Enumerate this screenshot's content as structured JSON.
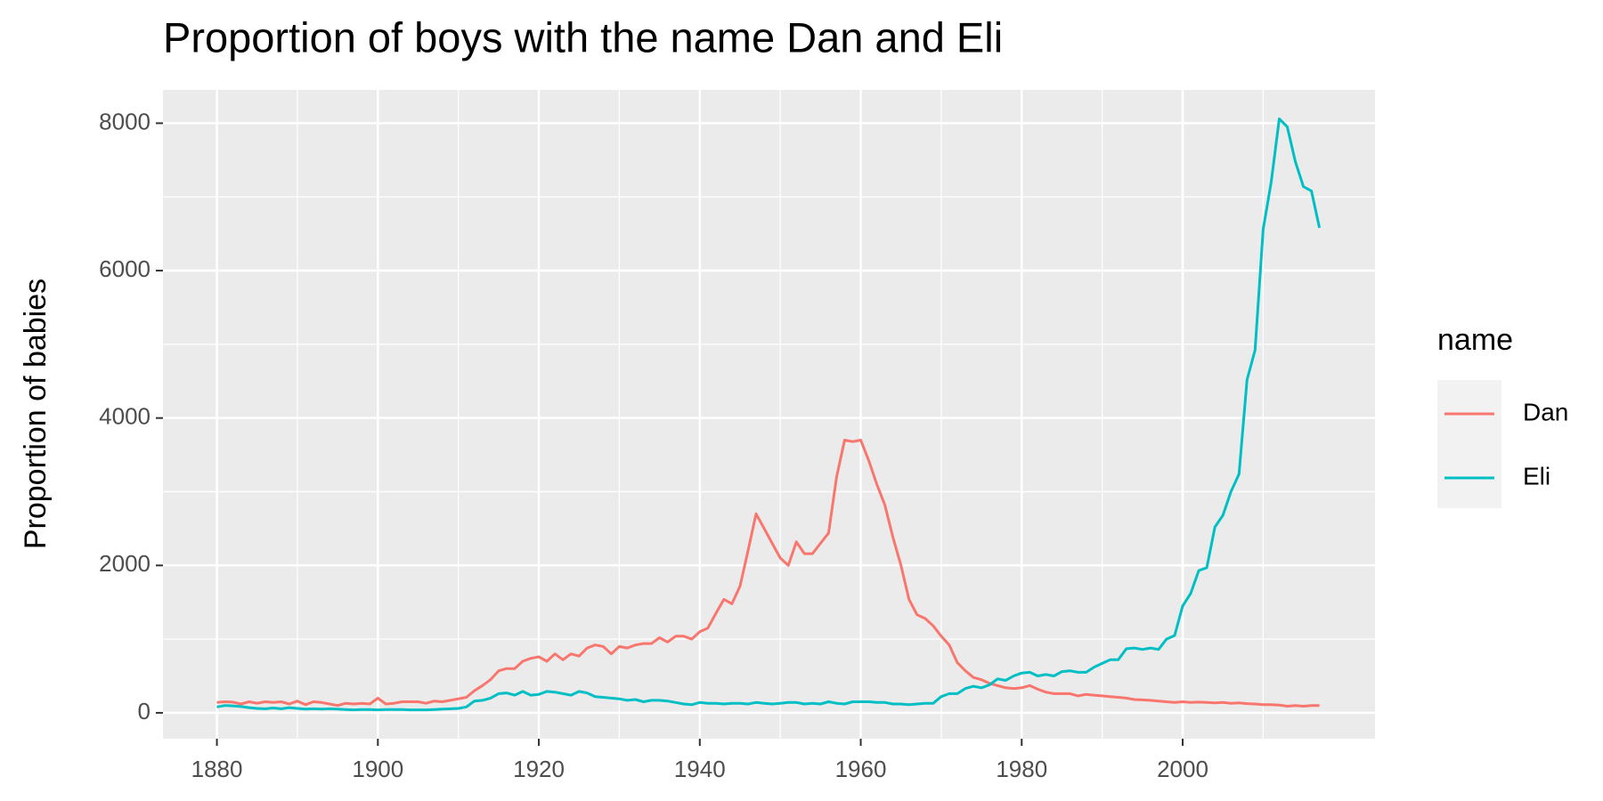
{
  "chart_data": {
    "type": "line",
    "title": "Proportion of boys with the name Dan and Eli",
    "y_label": "Proportion of babies",
    "legend_title": "name",
    "x": [
      1880,
      1881,
      1882,
      1883,
      1884,
      1885,
      1886,
      1887,
      1888,
      1889,
      1890,
      1891,
      1892,
      1893,
      1894,
      1895,
      1896,
      1897,
      1898,
      1899,
      1900,
      1901,
      1902,
      1903,
      1904,
      1905,
      1906,
      1907,
      1908,
      1909,
      1910,
      1911,
      1912,
      1913,
      1914,
      1915,
      1916,
      1917,
      1918,
      1919,
      1920,
      1921,
      1922,
      1923,
      1924,
      1925,
      1926,
      1927,
      1928,
      1929,
      1930,
      1931,
      1932,
      1933,
      1934,
      1935,
      1936,
      1937,
      1938,
      1939,
      1940,
      1941,
      1942,
      1943,
      1944,
      1945,
      1946,
      1947,
      1948,
      1949,
      1950,
      1951,
      1952,
      1953,
      1954,
      1955,
      1956,
      1957,
      1958,
      1959,
      1960,
      1961,
      1962,
      1963,
      1964,
      1965,
      1966,
      1967,
      1968,
      1969,
      1970,
      1971,
      1972,
      1973,
      1974,
      1975,
      1976,
      1977,
      1978,
      1979,
      1980,
      1981,
      1982,
      1983,
      1984,
      1985,
      1986,
      1987,
      1988,
      1989,
      1990,
      1991,
      1992,
      1993,
      1994,
      1995,
      1996,
      1997,
      1998,
      1999,
      2000,
      2001,
      2002,
      2003,
      2004,
      2005,
      2006,
      2007,
      2008,
      2009,
      2010,
      2011,
      2012,
      2013,
      2014,
      2015,
      2016,
      2017
    ],
    "series": [
      {
        "name": "Dan",
        "color": "#f8766d",
        "values": [
          140,
          150,
          145,
          120,
          150,
          130,
          150,
          140,
          150,
          120,
          160,
          110,
          150,
          140,
          120,
          100,
          130,
          120,
          130,
          120,
          200,
          120,
          130,
          150,
          150,
          150,
          130,
          160,
          150,
          170,
          190,
          210,
          300,
          370,
          450,
          570,
          600,
          600,
          700,
          740,
          760,
          700,
          800,
          720,
          800,
          770,
          880,
          920,
          900,
          800,
          900,
          880,
          920,
          940,
          940,
          1020,
          960,
          1040,
          1040,
          1000,
          1100,
          1150,
          1350,
          1540,
          1480,
          1720,
          2200,
          2700,
          2500,
          2300,
          2100,
          2000,
          2320,
          2160,
          2160,
          2300,
          2440,
          3200,
          3700,
          3680,
          3700,
          3420,
          3100,
          2820,
          2380,
          2000,
          1540,
          1330,
          1280,
          1180,
          1040,
          920,
          680,
          570,
          480,
          450,
          400,
          370,
          340,
          330,
          340,
          370,
          320,
          280,
          260,
          260,
          260,
          230,
          250,
          240,
          230,
          220,
          210,
          200,
          180,
          175,
          170,
          160,
          150,
          140,
          150,
          140,
          145,
          140,
          135,
          140,
          130,
          135,
          125,
          120,
          110,
          110,
          105,
          90,
          100,
          90,
          100,
          100
        ]
      },
      {
        "name": "Eli",
        "color": "#00bfc4",
        "values": [
          80,
          100,
          95,
          85,
          70,
          60,
          55,
          65,
          55,
          70,
          60,
          50,
          55,
          50,
          55,
          50,
          45,
          40,
          45,
          45,
          40,
          45,
          45,
          45,
          40,
          40,
          40,
          45,
          50,
          55,
          60,
          80,
          160,
          170,
          200,
          260,
          270,
          240,
          290,
          240,
          250,
          290,
          280,
          260,
          240,
          290,
          270,
          220,
          210,
          200,
          190,
          170,
          180,
          150,
          170,
          170,
          160,
          140,
          120,
          110,
          140,
          130,
          130,
          120,
          130,
          130,
          120,
          140,
          130,
          120,
          130,
          140,
          140,
          120,
          130,
          120,
          150,
          130,
          120,
          150,
          150,
          150,
          140,
          140,
          120,
          120,
          110,
          120,
          130,
          130,
          220,
          260,
          260,
          330,
          360,
          340,
          380,
          460,
          440,
          500,
          540,
          550,
          500,
          520,
          500,
          560,
          570,
          550,
          550,
          620,
          670,
          720,
          720,
          870,
          880,
          860,
          880,
          860,
          1000,
          1050,
          1450,
          1620,
          1930,
          1970,
          2520,
          2680,
          3000,
          3240,
          4520,
          4920,
          6560,
          7200,
          8060,
          7950,
          7480,
          7140,
          7080,
          6580
        ]
      }
    ],
    "xlim": [
      1873.3,
      2023.9
    ],
    "xticks": [
      1880,
      1900,
      1920,
      1940,
      1960,
      1980,
      2000
    ],
    "ylim": [
      -351,
      8452
    ],
    "yticks": [
      0,
      2000,
      4000,
      6000,
      8000
    ],
    "grid": true
  }
}
